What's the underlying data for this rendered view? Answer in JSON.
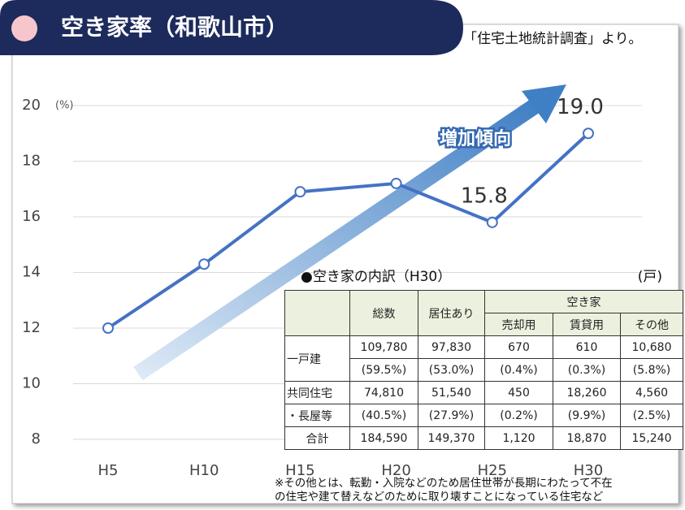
{
  "chart_data": {
    "type": "line",
    "title": "空き家率（和歌山市）",
    "source": "「住宅土地統計調査」より。",
    "y_unit": "(%)",
    "annotation": "増加傾向",
    "categories": [
      "H5",
      "H10",
      "H15",
      "H20",
      "H25",
      "H30"
    ],
    "values": [
      12.0,
      14.3,
      16.9,
      17.2,
      15.8,
      19.0
    ],
    "value_labels": [
      null,
      null,
      null,
      null,
      "15.8",
      "19.0"
    ],
    "color": "#4472c4",
    "ylim": [
      8,
      20
    ],
    "yticks": [
      8,
      10,
      12,
      14,
      16,
      18,
      20
    ],
    "grid": true
  },
  "table": {
    "title": "●空き家の内訳（H30）",
    "unit": "(戸)",
    "columns": [
      "総数",
      "居住あり"
    ],
    "group": "空き家",
    "subcolumns": [
      "売却用",
      "賃貸用",
      "その他"
    ],
    "rows": [
      {
        "label": [
          "一戸建"
        ],
        "counts": [
          "109,780",
          "97,830",
          "670",
          "610",
          "10,680"
        ],
        "shares": [
          "(59.5%)",
          "(53.0%)",
          "(0.4%)",
          "(0.3%)",
          "(5.8%)"
        ]
      },
      {
        "label": [
          "共同住宅",
          "・長屋等"
        ],
        "counts": [
          "74,810",
          "51,540",
          "450",
          "18,260",
          "4,560"
        ],
        "shares": [
          "(40.5%)",
          "(27.9%)",
          "(0.2%)",
          "(9.9%)",
          "(2.5%)"
        ]
      },
      {
        "label": [
          "合計"
        ],
        "counts": [
          "184,590",
          "149,370",
          "1,120",
          "18,870",
          "15,240"
        ]
      }
    ],
    "note": [
      "※その他とは、転勤・入院などのため居住世帯が長期にわたって不在",
      "の住宅や建て替えなどのために取り壊すことになっている住宅など"
    ]
  }
}
